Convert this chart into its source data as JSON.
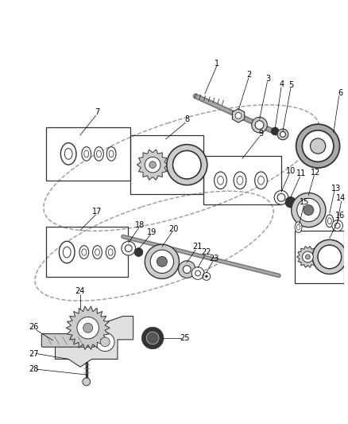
{
  "bg_color": "#ffffff",
  "fig_width": 4.38,
  "fig_height": 5.33,
  "dpi": 100
}
